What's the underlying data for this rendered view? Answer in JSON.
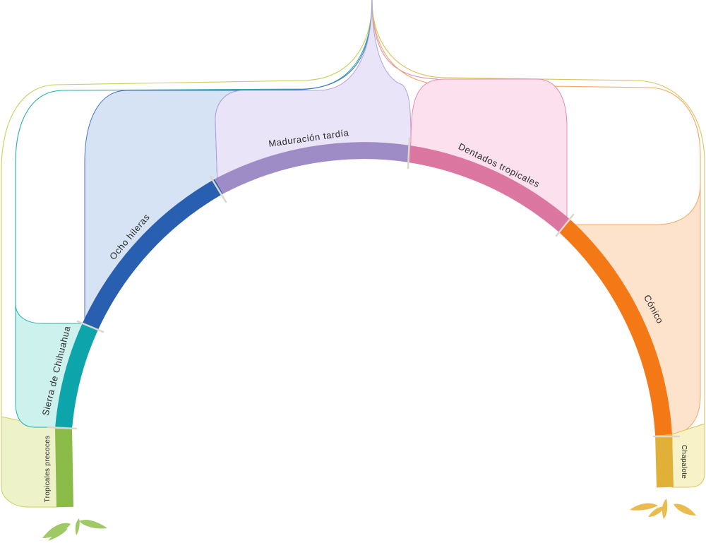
{
  "diagram": {
    "groups": [
      {
        "id": "tropicales-precoces",
        "label": "Tropicales precoces",
        "color": "#8fc04a",
        "fill": "#eef2c8",
        "stroke": "#c9cf5a"
      },
      {
        "id": "sierra-de-chihuahua",
        "label": "Sierra de Chihuahua",
        "color": "#12aab0",
        "fill": "#cdf1ec",
        "stroke": "#20b2aa"
      },
      {
        "id": "ocho-hileras",
        "label": "Ocho hileras",
        "color": "#2a62b5",
        "fill": "#d6e3f4",
        "stroke": "#4a74c4"
      },
      {
        "id": "maduracion-tardia",
        "label": "Maduración tardía",
        "color": "#a390cc",
        "fill": "#e9e4f7",
        "stroke": "#b3a4da"
      },
      {
        "id": "dentados-tropicales",
        "label": "Dentados tropicales",
        "color": "#e27aa6",
        "fill": "#fde0ee",
        "stroke": "#e58cb4"
      },
      {
        "id": "conico",
        "label": "Cónico",
        "color": "#fb7d18",
        "fill": "#fde2cc",
        "stroke": "#f5a862"
      },
      {
        "id": "chapalote",
        "label": "Chapalote",
        "color": "#e7b53a",
        "fill": "#f8f2c8",
        "stroke": "#d9c45a"
      }
    ]
  }
}
